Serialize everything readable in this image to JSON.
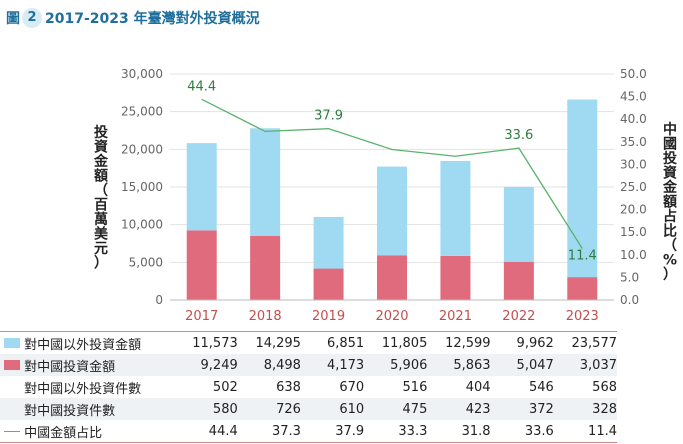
{
  "figure": {
    "label": "圖",
    "number": "2",
    "title": "2017-2023 年臺灣對外投資概況"
  },
  "colors": {
    "bar_other": "#9fdaf2",
    "bar_china": "#e06b7c",
    "line": "#59b36c",
    "title": "#1f6f9d",
    "year": "#c0504d"
  },
  "chart_data": {
    "type": "bar",
    "stacked": true,
    "title": "2017-2023 年臺灣對外投資概況",
    "categories": [
      "2017",
      "2018",
      "2019",
      "2020",
      "2021",
      "2022",
      "2023"
    ],
    "series": [
      {
        "name": "對中國投資金額",
        "type": "bar",
        "axis": "left",
        "values": [
          9249,
          8498,
          4173,
          5906,
          5863,
          5047,
          3037
        ]
      },
      {
        "name": "對中國以外投資金額",
        "type": "bar",
        "axis": "left",
        "values": [
          11573,
          14295,
          6851,
          11805,
          12599,
          9962,
          23577
        ]
      },
      {
        "name": "中國金額占比",
        "type": "line",
        "axis": "right",
        "values": [
          44.4,
          37.3,
          37.9,
          33.3,
          31.8,
          33.6,
          11.4
        ]
      }
    ],
    "line_data_labels": [
      {
        "index": 0,
        "text": "44.4"
      },
      {
        "index": 2,
        "text": "37.9"
      },
      {
        "index": 5,
        "text": "33.6"
      },
      {
        "index": 6,
        "text": "11.4"
      }
    ],
    "ylabel_left": "投資金額（百萬美元）",
    "ylabel_right": "中國投資金額占比（%）",
    "ylim_left": [
      0,
      30000
    ],
    "ylim_right": [
      0,
      50
    ],
    "yticks_left": [
      "0",
      "5,000",
      "10,000",
      "15,000",
      "20,000",
      "25,000",
      "30,000"
    ],
    "yticks_right": [
      "0.0",
      "5.0",
      "10.0",
      "15.0",
      "20.0",
      "25.0",
      "30.0",
      "35.0",
      "40.0",
      "45.0",
      "50.0"
    ]
  },
  "table": {
    "rows": [
      {
        "legend": "box-blue",
        "label": "對中國以外投資金額",
        "values": [
          "11,573",
          "14,295",
          "6,851",
          "11,805",
          "12,599",
          "9,962",
          "23,577"
        ]
      },
      {
        "legend": "box-red",
        "label": "對中國投資金額",
        "values": [
          "9,249",
          "8,498",
          "4,173",
          "5,906",
          "5,863",
          "5,047",
          "3,037"
        ]
      },
      {
        "legend": "none",
        "label": "對中國以外投資件數",
        "values": [
          "502",
          "638",
          "670",
          "516",
          "404",
          "546",
          "568"
        ]
      },
      {
        "legend": "none",
        "label": "對中國投資件數",
        "values": [
          "580",
          "726",
          "610",
          "475",
          "423",
          "372",
          "328"
        ]
      },
      {
        "legend": "line",
        "label": "中國金額占比",
        "values": [
          "44.4",
          "37.3",
          "37.9",
          "33.3",
          "31.8",
          "33.6",
          "11.4"
        ]
      }
    ]
  }
}
